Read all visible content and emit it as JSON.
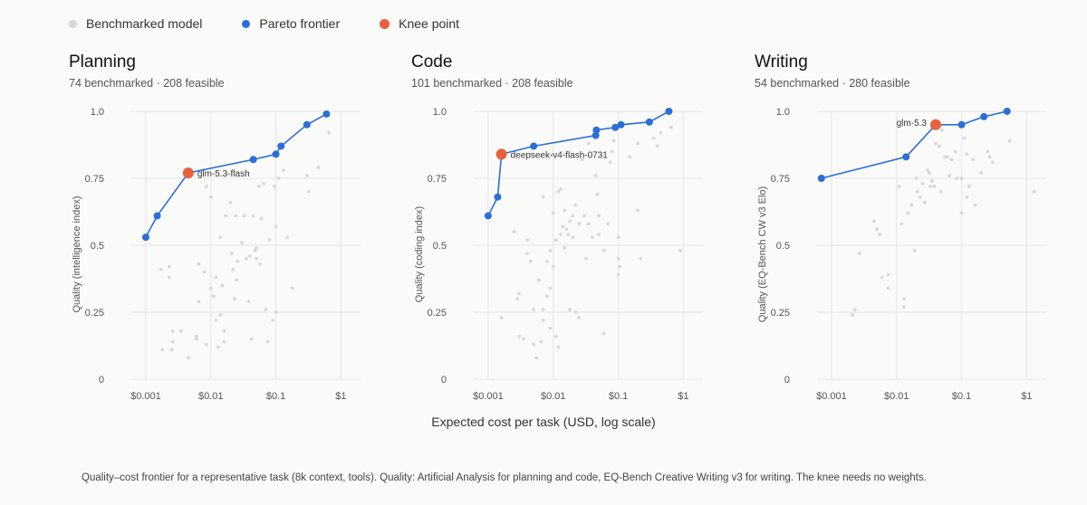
{
  "legend": [
    {
      "label": "Benchmarked model",
      "color": "#d8d8d8"
    },
    {
      "label": "Pareto frontier",
      "color": "#2b6fd6"
    },
    {
      "label": "Knee point",
      "color": "#e8603c"
    }
  ],
  "xlabel": "Expected cost per task (USD, log scale)",
  "caption": "Quality–cost frontier for a representative task (8k context, tools). Quality: Artificial Analysis for planning and code, EQ-Bench Creative Writing v3 for writing. The knee needs no weights.",
  "colors": {
    "benchmarked": "#d8d8d8",
    "frontier": "#2b6fd6",
    "knee": "#e8603c",
    "grid": "#e6e6e6"
  },
  "chart_data": [
    {
      "type": "scatter",
      "title": "Planning",
      "subtitle": "74 benchmarked · 208 feasible",
      "xlabel": "Expected cost per task (USD, log scale)",
      "ylabel": "Quality (intelligence index)",
      "x_scale": "log",
      "xlim": [
        0.0006,
        2
      ],
      "ylim": [
        0,
        1.0
      ],
      "x_ticks": [
        0.001,
        0.01,
        0.1,
        1
      ],
      "x_tick_labels": [
        "$0.001",
        "$0.01",
        "$0.1",
        "$1"
      ],
      "y_ticks": [
        0,
        0.25,
        0.5,
        0.75,
        1.0
      ],
      "y_tick_labels": [
        "0",
        "0.25",
        "0.5",
        "0.75",
        "1.0"
      ],
      "grid": true,
      "frontier": [
        [
          0.001,
          0.53
        ],
        [
          0.0015,
          0.61
        ],
        [
          0.0045,
          0.77
        ],
        [
          0.045,
          0.82
        ],
        [
          0.1,
          0.84
        ],
        [
          0.12,
          0.87
        ],
        [
          0.3,
          0.95
        ],
        [
          0.6,
          0.99
        ]
      ],
      "knee": {
        "x": 0.0045,
        "y": 0.77,
        "label": "glm-5.3-flash"
      },
      "benchmarked": [
        [
          0.0017,
          0.41
        ],
        [
          0.0023,
          0.42
        ],
        [
          0.0023,
          0.38
        ],
        [
          0.0018,
          0.11
        ],
        [
          0.0025,
          0.11
        ],
        [
          0.0026,
          0.18
        ],
        [
          0.0035,
          0.18
        ],
        [
          0.0026,
          0.14
        ],
        [
          0.0045,
          0.08
        ],
        [
          0.006,
          0.16
        ],
        [
          0.006,
          0.15
        ],
        [
          0.0065,
          0.43
        ],
        [
          0.0065,
          0.29
        ],
        [
          0.0085,
          0.72
        ],
        [
          0.0085,
          0.13
        ],
        [
          0.008,
          0.4
        ],
        [
          0.01,
          0.68
        ],
        [
          0.01,
          0.34
        ],
        [
          0.011,
          0.31
        ],
        [
          0.012,
          0.38
        ],
        [
          0.012,
          0.22
        ],
        [
          0.014,
          0.53
        ],
        [
          0.014,
          0.24
        ],
        [
          0.013,
          0.12
        ],
        [
          0.015,
          0.35
        ],
        [
          0.016,
          0.18
        ],
        [
          0.017,
          0.61
        ],
        [
          0.016,
          0.14
        ],
        [
          0.02,
          0.66
        ],
        [
          0.021,
          0.47
        ],
        [
          0.022,
          0.41
        ],
        [
          0.023,
          0.3
        ],
        [
          0.024,
          0.61
        ],
        [
          0.026,
          0.44
        ],
        [
          0.025,
          0.37
        ],
        [
          0.03,
          0.51
        ],
        [
          0.033,
          0.61
        ],
        [
          0.035,
          0.45
        ],
        [
          0.038,
          0.29
        ],
        [
          0.04,
          0.46
        ],
        [
          0.042,
          0.15
        ],
        [
          0.045,
          0.61
        ],
        [
          0.048,
          0.48
        ],
        [
          0.05,
          0.49
        ],
        [
          0.05,
          0.45
        ],
        [
          0.055,
          0.72
        ],
        [
          0.057,
          0.43
        ],
        [
          0.06,
          0.6
        ],
        [
          0.065,
          0.73
        ],
        [
          0.07,
          0.26
        ],
        [
          0.075,
          0.14
        ],
        [
          0.08,
          0.52
        ],
        [
          0.09,
          0.22
        ],
        [
          0.1,
          0.57
        ],
        [
          0.1,
          0.25
        ],
        [
          0.095,
          0.72
        ],
        [
          0.11,
          0.75
        ],
        [
          0.13,
          0.78
        ],
        [
          0.15,
          0.53
        ],
        [
          0.18,
          0.34
        ],
        [
          0.3,
          0.76
        ],
        [
          0.32,
          0.7
        ],
        [
          0.45,
          0.79
        ],
        [
          0.65,
          0.92
        ]
      ]
    },
    {
      "type": "scatter",
      "title": "Code",
      "subtitle": "101 benchmarked · 208 feasible",
      "xlabel": "Expected cost per task (USD, log scale)",
      "ylabel": "Quality (coding index)",
      "x_scale": "log",
      "xlim": [
        0.0006,
        2
      ],
      "ylim": [
        0,
        1.0
      ],
      "x_ticks": [
        0.001,
        0.01,
        0.1,
        1
      ],
      "x_tick_labels": [
        "$0.001",
        "$0.01",
        "$0.1",
        "$1"
      ],
      "y_ticks": [
        0,
        0.25,
        0.5,
        0.75,
        1.0
      ],
      "y_tick_labels": [
        "0",
        "0.25",
        "0.5",
        "0.75",
        "1.0"
      ],
      "grid": true,
      "frontier": [
        [
          0.001,
          0.61
        ],
        [
          0.0014,
          0.68
        ],
        [
          0.0016,
          0.84
        ],
        [
          0.005,
          0.87
        ],
        [
          0.045,
          0.91
        ],
        [
          0.046,
          0.93
        ],
        [
          0.09,
          0.94
        ],
        [
          0.11,
          0.95
        ],
        [
          0.3,
          0.96
        ],
        [
          0.6,
          1.0
        ]
      ],
      "knee": {
        "x": 0.0016,
        "y": 0.84,
        "label": "deepseek-v4-flash-0731"
      },
      "benchmarked": [
        [
          0.0016,
          0.23
        ],
        [
          0.0025,
          0.55
        ],
        [
          0.0028,
          0.3
        ],
        [
          0.003,
          0.32
        ],
        [
          0.003,
          0.16
        ],
        [
          0.0035,
          0.15
        ],
        [
          0.004,
          0.47
        ],
        [
          0.004,
          0.52
        ],
        [
          0.0045,
          0.44
        ],
        [
          0.005,
          0.26
        ],
        [
          0.005,
          0.13
        ],
        [
          0.0055,
          0.08
        ],
        [
          0.006,
          0.37
        ],
        [
          0.0065,
          0.14
        ],
        [
          0.007,
          0.22
        ],
        [
          0.007,
          0.68
        ],
        [
          0.007,
          0.26
        ],
        [
          0.008,
          0.31
        ],
        [
          0.008,
          0.44
        ],
        [
          0.009,
          0.48
        ],
        [
          0.009,
          0.34
        ],
        [
          0.009,
          0.19
        ],
        [
          0.01,
          0.62
        ],
        [
          0.01,
          0.42
        ],
        [
          0.011,
          0.52
        ],
        [
          0.011,
          0.16
        ],
        [
          0.012,
          0.7
        ],
        [
          0.012,
          0.12
        ],
        [
          0.013,
          0.71
        ],
        [
          0.013,
          0.54
        ],
        [
          0.014,
          0.57
        ],
        [
          0.015,
          0.49
        ],
        [
          0.015,
          0.63
        ],
        [
          0.016,
          0.56
        ],
        [
          0.017,
          0.54
        ],
        [
          0.018,
          0.26
        ],
        [
          0.018,
          0.59
        ],
        [
          0.02,
          0.61
        ],
        [
          0.02,
          0.53
        ],
        [
          0.022,
          0.65
        ],
        [
          0.022,
          0.25
        ],
        [
          0.025,
          0.58
        ],
        [
          0.025,
          0.23
        ],
        [
          0.028,
          0.82
        ],
        [
          0.03,
          0.61
        ],
        [
          0.032,
          0.45
        ],
        [
          0.035,
          0.58
        ],
        [
          0.035,
          0.88
        ],
        [
          0.04,
          0.53
        ],
        [
          0.045,
          0.76
        ],
        [
          0.048,
          0.69
        ],
        [
          0.05,
          0.61
        ],
        [
          0.05,
          0.54
        ],
        [
          0.06,
          0.48
        ],
        [
          0.06,
          0.17
        ],
        [
          0.07,
          0.58
        ],
        [
          0.075,
          0.81
        ],
        [
          0.08,
          0.85
        ],
        [
          0.085,
          0.89
        ],
        [
          0.1,
          0.53
        ],
        [
          0.1,
          0.45
        ],
        [
          0.105,
          0.42
        ],
        [
          0.1,
          0.39
        ],
        [
          0.15,
          0.83
        ],
        [
          0.2,
          0.88
        ],
        [
          0.2,
          0.63
        ],
        [
          0.22,
          0.45
        ],
        [
          0.35,
          0.9
        ],
        [
          0.4,
          0.87
        ],
        [
          0.45,
          0.92
        ],
        [
          0.65,
          0.94
        ],
        [
          0.9,
          0.48
        ]
      ]
    },
    {
      "type": "scatter",
      "title": "Writing",
      "subtitle": "54 benchmarked · 280 feasible",
      "xlabel": "Expected cost per task (USD, log scale)",
      "ylabel": "Quality (EQ-Bench CW v3 Elo)",
      "x_scale": "log",
      "xlim": [
        0.0006,
        2
      ],
      "ylim": [
        0,
        1.0
      ],
      "x_ticks": [
        0.001,
        0.01,
        0.1,
        1
      ],
      "x_tick_labels": [
        "$0.001",
        "$0.01",
        "$0.1",
        "$1"
      ],
      "y_ticks": [
        0,
        0.25,
        0.5,
        0.75,
        1.0
      ],
      "y_tick_labels": [
        "0",
        "0.25",
        "0.5",
        "0.75",
        "1.0"
      ],
      "grid": true,
      "frontier": [
        [
          0.0007,
          0.75
        ],
        [
          0.014,
          0.83
        ],
        [
          0.04,
          0.95
        ],
        [
          0.1,
          0.95
        ],
        [
          0.22,
          0.98
        ],
        [
          0.5,
          1.0
        ]
      ],
      "knee": {
        "x": 0.04,
        "y": 0.95,
        "label": "glm-5.3"
      },
      "benchmarked": [
        [
          0.0021,
          0.24
        ],
        [
          0.0023,
          0.26
        ],
        [
          0.0027,
          0.47
        ],
        [
          0.0045,
          0.59
        ],
        [
          0.005,
          0.56
        ],
        [
          0.0055,
          0.54
        ],
        [
          0.006,
          0.38
        ],
        [
          0.0075,
          0.39
        ],
        [
          0.0075,
          0.34
        ],
        [
          0.011,
          0.72
        ],
        [
          0.012,
          0.58
        ],
        [
          0.013,
          0.3
        ],
        [
          0.013,
          0.27
        ],
        [
          0.015,
          0.62
        ],
        [
          0.017,
          0.65
        ],
        [
          0.019,
          0.48
        ],
        [
          0.02,
          0.75
        ],
        [
          0.021,
          0.7
        ],
        [
          0.023,
          0.68
        ],
        [
          0.025,
          0.73
        ],
        [
          0.027,
          0.66
        ],
        [
          0.03,
          0.78
        ],
        [
          0.032,
          0.77
        ],
        [
          0.033,
          0.72
        ],
        [
          0.035,
          0.74
        ],
        [
          0.038,
          0.72
        ],
        [
          0.04,
          0.88
        ],
        [
          0.045,
          0.87
        ],
        [
          0.048,
          0.7
        ],
        [
          0.05,
          0.93
        ],
        [
          0.055,
          0.83
        ],
        [
          0.06,
          0.83
        ],
        [
          0.065,
          0.76
        ],
        [
          0.07,
          0.82
        ],
        [
          0.08,
          0.85
        ],
        [
          0.085,
          0.75
        ],
        [
          0.1,
          0.62
        ],
        [
          0.1,
          0.75
        ],
        [
          0.11,
          0.9
        ],
        [
          0.12,
          0.84
        ],
        [
          0.12,
          0.68
        ],
        [
          0.13,
          0.72
        ],
        [
          0.15,
          0.82
        ],
        [
          0.16,
          0.65
        ],
        [
          0.2,
          0.77
        ],
        [
          0.25,
          0.85
        ],
        [
          0.27,
          0.83
        ],
        [
          0.3,
          0.81
        ],
        [
          0.55,
          0.89
        ],
        [
          1.3,
          0.7
        ]
      ]
    }
  ]
}
